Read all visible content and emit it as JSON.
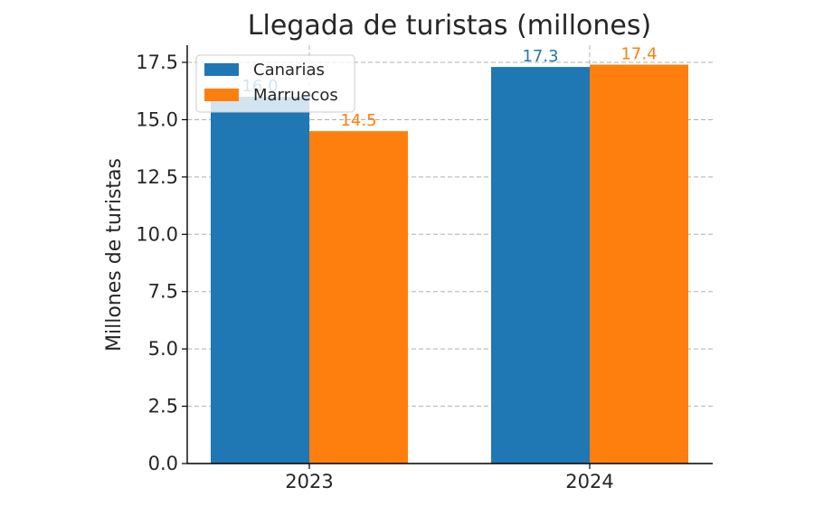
{
  "chart_data": {
    "type": "bar",
    "title": "Llegada de turistas (millones)",
    "xlabel": "",
    "ylabel": "Millones de turistas",
    "categories": [
      "2023",
      "2024"
    ],
    "series": [
      {
        "name": "Canarias",
        "values": [
          16.0,
          17.3
        ],
        "color": "#1f77b4"
      },
      {
        "name": "Marruecos",
        "values": [
          14.5,
          17.4
        ],
        "color": "#ff7f0e"
      }
    ],
    "ylim": [
      0,
      18.25
    ],
    "yticks": [
      "0.0",
      "2.5",
      "5.0",
      "7.5",
      "10.0",
      "12.5",
      "15.0",
      "17.5"
    ],
    "data_labels": [
      [
        "16.0",
        "17.3"
      ],
      [
        "14.5",
        "17.4"
      ]
    ],
    "grid": true,
    "legend_position": "upper-left"
  }
}
